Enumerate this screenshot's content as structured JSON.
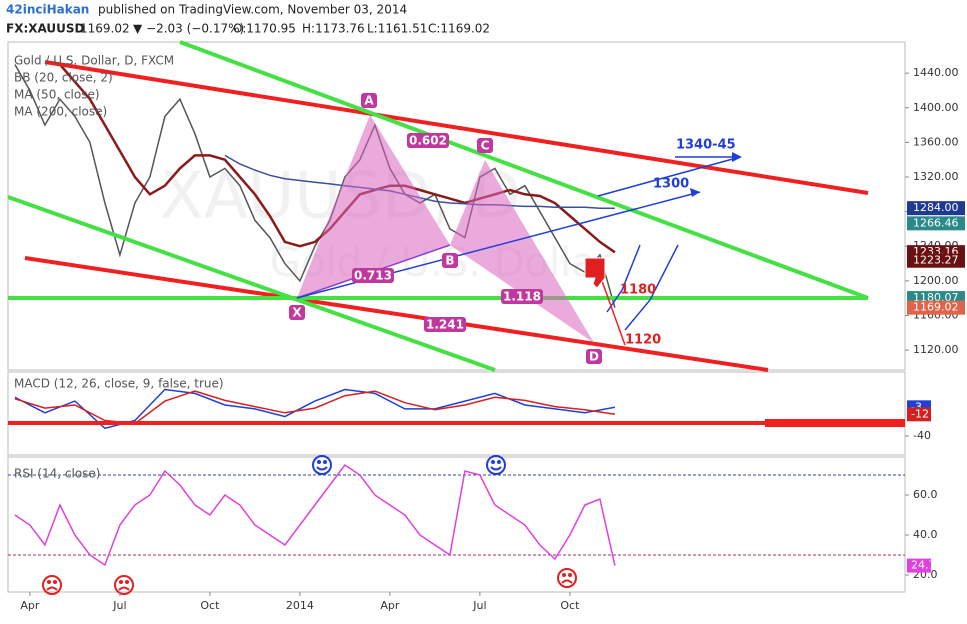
{
  "header": {
    "author": "42inciHakan",
    "published": "published on TradingView.com, November 03, 2014",
    "symbol": "FX:XAUUSD",
    "last": "1169.02",
    "change": "▼ −2.03 (−0.17%)",
    "open": "O:1170.95",
    "high": "H:1173.76",
    "low": "L:1161.51",
    "close": "C:1169.02"
  },
  "legend": [
    "Gold / U.S. Dollar, D, FXCM",
    "BB (20, close, 2)",
    "MA (50, close)",
    "MA (200, close)"
  ],
  "watermark": [
    "XAUUSD, D",
    "Gold / U.S. Dollar"
  ],
  "pattern_labels": [
    "X",
    "A",
    "B",
    "C",
    "D"
  ],
  "ratios": [
    "0.713",
    "0.602",
    "1.118",
    "1.241"
  ],
  "targets": [
    "1340-45",
    "1300",
    "1180",
    "1120"
  ],
  "chart_data": [
    {
      "type": "line",
      "xlim": [
        2.27,
        32.17
      ],
      "ylim": [
        1097,
        1476
      ],
      "xticks": [
        {
          "value": 3,
          "label": "Apr"
        },
        {
          "value": 6,
          "label": "Jul"
        },
        {
          "value": 9,
          "label": "Oct"
        },
        {
          "value": 12,
          "label": "2014"
        },
        {
          "value": 15,
          "label": "Apr"
        },
        {
          "value": 18,
          "label": "Jul"
        },
        {
          "value": 21,
          "label": "Oct"
        }
      ],
      "yticks": [
        {
          "value": 1120,
          "label": "1120.00"
        },
        {
          "value": 1160,
          "label": "1160.00"
        },
        {
          "value": 1200,
          "label": "1200.00"
        },
        {
          "value": 1240,
          "label": "1240.00"
        },
        {
          "value": 1280,
          "label": "1280.00"
        },
        {
          "value": 1320,
          "label": "1320.00"
        },
        {
          "value": 1360,
          "label": "1360.00"
        },
        {
          "value": 1400,
          "label": "1400.00"
        },
        {
          "value": 1440,
          "label": "1440.00"
        }
      ],
      "x": [
        2.5,
        3,
        3.5,
        4,
        4.5,
        5,
        5.5,
        6,
        6.5,
        7,
        7.5,
        8,
        8.5,
        9,
        9.5,
        10,
        10.5,
        11,
        11.5,
        12,
        12.5,
        13,
        13.5,
        14,
        14.5,
        15,
        15.5,
        16,
        16.5,
        17,
        17.5,
        18,
        18.5,
        19,
        19.5,
        20,
        20.5,
        21,
        21.5,
        22,
        22.5
      ],
      "series": [
        {
          "name": "Gold / U.S. Dollar",
          "color": "#555555",
          "values": [
            1450,
            1420,
            1380,
            1410,
            1390,
            1360,
            1290,
            1230,
            1290,
            1320,
            1390,
            1410,
            1370,
            1320,
            1330,
            1310,
            1270,
            1250,
            1220,
            1200,
            1240,
            1270,
            1320,
            1340,
            1380,
            1330,
            1300,
            1290,
            1300,
            1260,
            1250,
            1320,
            1330,
            1300,
            1310,
            1280,
            1250,
            1220,
            1210,
            1230,
            1169.02
          ]
        },
        {
          "name": "MA (50, close)",
          "color": "#8b1a1a",
          "values": [
            null,
            null,
            null,
            1450,
            1430,
            1410,
            1380,
            1350,
            1320,
            1300,
            1310,
            1330,
            1345,
            1345,
            1340,
            1320,
            1300,
            1275,
            1245,
            1240,
            1245,
            1260,
            1280,
            1300,
            1305,
            1310,
            1310,
            1305,
            1300,
            1295,
            1290,
            1295,
            1300,
            1305,
            1300,
            1298,
            1290,
            1275,
            1260,
            1245,
            1233
          ]
        },
        {
          "name": "MA (200, close)",
          "color": "#3a4f9c",
          "values": [
            null,
            null,
            null,
            null,
            null,
            null,
            null,
            null,
            null,
            null,
            null,
            null,
            null,
            null,
            1345,
            1335,
            1328,
            1322,
            1318,
            1316,
            1314,
            1312,
            1310,
            1308,
            1306,
            1304,
            1300,
            1296,
            1292,
            1290,
            1289,
            1288,
            1288,
            1287,
            1286,
            1286,
            1285,
            1285,
            1285,
            1284,
            1284
          ]
        }
      ],
      "price_labels": [
        {
          "value": 1284,
          "label": "1284.00",
          "color": "#1f3a93"
        },
        {
          "value": 1266.46,
          "label": "1266.46",
          "color": "#2a8a8a"
        },
        {
          "value": 1233.16,
          "label": "1233.16",
          "color": "#6b1010"
        },
        {
          "value": 1223.27,
          "label": "1223.27",
          "color": "#6b1010"
        },
        {
          "value": 1180.07,
          "label": "1180.07",
          "color": "#2a8a8a"
        },
        {
          "value": 1169.02,
          "label": "1169.02",
          "color": "#e0644a"
        }
      ]
    },
    {
      "type": "line",
      "title": "MACD (12, 26, close, 9, false, true)",
      "xlim": [
        2.27,
        32.17
      ],
      "ylim": [
        -64.5,
        42.6
      ],
      "yticks": [
        -40
      ],
      "x": [
        2.5,
        3.5,
        4.5,
        5.5,
        6.5,
        7.5,
        8.5,
        9.5,
        10.5,
        11.5,
        12.5,
        13.5,
        14.5,
        15.5,
        16.5,
        17.5,
        18.5,
        19.5,
        20.5,
        21.5,
        22.5
      ],
      "series": [
        {
          "name": "MACD",
          "color": "#1f3fd6",
          "values": [
            10,
            -10,
            5,
            -30,
            -20,
            20,
            15,
            0,
            -5,
            -15,
            5,
            20,
            15,
            -5,
            -5,
            5,
            15,
            0,
            -5,
            -10,
            -3
          ]
        },
        {
          "name": "Signal",
          "color": "#d62020",
          "values": [
            8,
            -4,
            0,
            -20,
            -24,
            5,
            18,
            6,
            -2,
            -10,
            -4,
            12,
            18,
            3,
            -6,
            0,
            10,
            6,
            -2,
            -6,
            -12
          ]
        }
      ]
    },
    {
      "type": "line",
      "title": "RSI (14, close)",
      "xlim": [
        2.27,
        32.17
      ],
      "ylim": [
        11.5,
        79
      ],
      "yticks": [
        {
          "value": 20,
          "label": "20.0"
        },
        {
          "value": 40,
          "label": "40.0"
        },
        {
          "value": 60,
          "label": "60.0"
        }
      ],
      "bands": [
        70,
        30
      ],
      "x": [
        2.5,
        3,
        3.5,
        4,
        4.5,
        5,
        5.5,
        6,
        6.5,
        7,
        7.5,
        8,
        8.5,
        9,
        9.5,
        10,
        10.5,
        11,
        11.5,
        12,
        12.5,
        13,
        13.5,
        14,
        14.5,
        15,
        15.5,
        16,
        16.5,
        17,
        17.5,
        18,
        18.5,
        19,
        19.5,
        20,
        20.5,
        21,
        21.5,
        22,
        22.5
      ],
      "series": [
        {
          "name": "RSI",
          "color": "#e040e0",
          "values": [
            50,
            45,
            35,
            55,
            40,
            30,
            25,
            45,
            55,
            60,
            72,
            65,
            55,
            50,
            60,
            55,
            45,
            40,
            35,
            45,
            55,
            65,
            75,
            70,
            60,
            55,
            50,
            40,
            35,
            30,
            72,
            70,
            55,
            50,
            45,
            35,
            28,
            40,
            55,
            58,
            24.7
          ]
        }
      ]
    }
  ]
}
